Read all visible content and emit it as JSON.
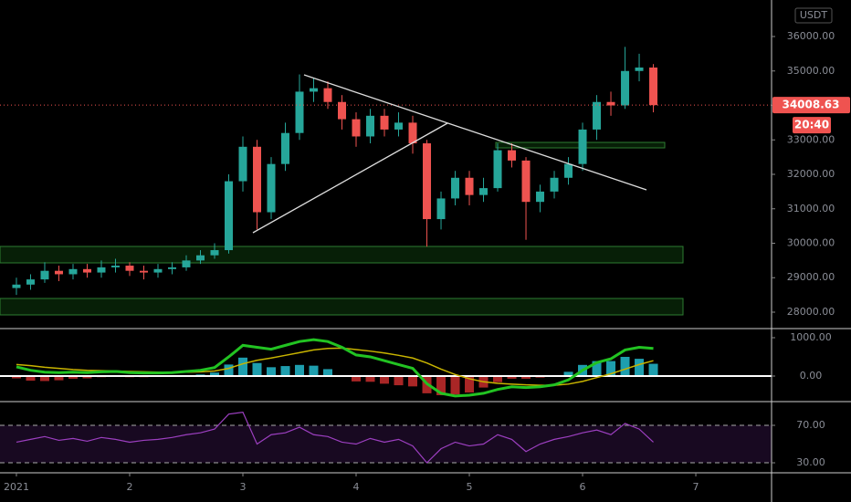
{
  "chart_data": [
    {
      "type": "candlestick",
      "currency": "USDT",
      "x": [
        1,
        1.125,
        1.25,
        1.375,
        1.5,
        1.625,
        1.75,
        1.875,
        2,
        2.125,
        2.25,
        2.375,
        2.5,
        2.625,
        2.75,
        2.875,
        3,
        3.125,
        3.25,
        3.375,
        3.5,
        3.625,
        3.75,
        3.875,
        4,
        4.125,
        4.25,
        4.375,
        4.5,
        4.625,
        4.75,
        4.875,
        5,
        5.125,
        5.25,
        5.375,
        5.5,
        5.625,
        5.75,
        5.875,
        6,
        6.125,
        6.25,
        6.375,
        6.5,
        6.625
      ],
      "open": [
        28700,
        28800,
        28950,
        29200,
        29100,
        29250,
        29150,
        29300,
        29350,
        29200,
        29150,
        29250,
        29300,
        29500,
        29650,
        29800,
        31800,
        32800,
        30900,
        32300,
        33200,
        34400,
        34500,
        34100,
        33600,
        33100,
        33700,
        33300,
        33500,
        32900,
        30700,
        31300,
        31900,
        31400,
        31600,
        32700,
        32400,
        31200,
        31500,
        31900,
        32300,
        33300,
        34100,
        34000,
        35000,
        35100
      ],
      "high": [
        29000,
        29100,
        29450,
        29350,
        29400,
        29400,
        29500,
        29550,
        29450,
        29350,
        29400,
        29450,
        29650,
        29800,
        30000,
        32000,
        33100,
        33000,
        32500,
        33500,
        34900,
        34800,
        34700,
        34300,
        33800,
        33900,
        33900,
        33800,
        33700,
        33000,
        31500,
        32100,
        32100,
        31900,
        32900,
        32900,
        32500,
        31700,
        32100,
        32500,
        33500,
        34300,
        34400,
        35700,
        35500,
        35200
      ],
      "low": [
        28500,
        28650,
        28850,
        28900,
        28950,
        29000,
        29000,
        29150,
        29050,
        28950,
        29000,
        29100,
        29200,
        29400,
        29550,
        29700,
        31500,
        30400,
        30700,
        32100,
        33000,
        34100,
        33900,
        33300,
        32800,
        32900,
        33100,
        33100,
        32600,
        29900,
        30400,
        31100,
        31100,
        31200,
        31500,
        32200,
        30100,
        30900,
        31300,
        31700,
        32100,
        33000,
        33700,
        33900,
        34700,
        33800
      ],
      "close": [
        28800,
        28950,
        29200,
        29100,
        29250,
        29150,
        29300,
        29350,
        29200,
        29150,
        29250,
        29300,
        29500,
        29650,
        29800,
        31800,
        32800,
        30900,
        32300,
        33200,
        34400,
        34500,
        34100,
        33600,
        33100,
        33700,
        33300,
        33500,
        32900,
        30700,
        31300,
        31900,
        31400,
        31600,
        32700,
        32400,
        31200,
        31500,
        31900,
        32300,
        33300,
        34100,
        34000,
        35000,
        35100,
        34008.63
      ],
      "up_color": "#26a69a",
      "down_color": "#ef5350",
      "last_price": 34008.63,
      "countdown": "20:40",
      "xlim": [
        0.855,
        7.669
      ],
      "xticks": [
        {
          "value": 1,
          "label": "2021"
        },
        2,
        3,
        4,
        5,
        6,
        7
      ],
      "ylim": [
        27576,
        37060
      ],
      "yticks": [
        {
          "value": 28000,
          "label": "28000.00"
        },
        {
          "value": 29000,
          "label": "29000.00"
        },
        {
          "value": 30000,
          "label": "30000.00"
        },
        {
          "value": 31000,
          "label": "31000.00"
        },
        {
          "value": 32000,
          "label": "32000.00"
        },
        {
          "value": 33000,
          "label": "33000.00"
        },
        {
          "value": 34000,
          "label": "34000.00"
        },
        {
          "value": 35000,
          "label": "35000.00"
        },
        {
          "value": 36000,
          "label": "36000.00"
        }
      ]
    },
    {
      "type": "macd",
      "macd": [
        240,
        150,
        100,
        90,
        100,
        90,
        110,
        120,
        90,
        80,
        80,
        90,
        120,
        150,
        220,
        500,
        800,
        750,
        700,
        800,
        900,
        950,
        900,
        750,
        550,
        500,
        400,
        300,
        200,
        -200,
        -450,
        -520,
        -500,
        -450,
        -350,
        -280,
        -300,
        -280,
        -230,
        -100,
        150,
        350,
        450,
        680,
        750,
        720
      ],
      "signal": [
        300,
        270,
        230,
        200,
        170,
        150,
        140,
        130,
        120,
        110,
        100,
        100,
        100,
        110,
        130,
        200,
        320,
        410,
        470,
        540,
        610,
        680,
        720,
        730,
        690,
        650,
        600,
        540,
        470,
        340,
        180,
        40,
        -70,
        -150,
        -190,
        -210,
        -230,
        -240,
        -240,
        -210,
        -140,
        -40,
        60,
        180,
        300,
        400
      ],
      "histogram": [
        -60,
        -120,
        -130,
        -110,
        -70,
        -60,
        -30,
        -10,
        -30,
        -30,
        -20,
        -10,
        20,
        40,
        90,
        300,
        480,
        340,
        230,
        260,
        290,
        270,
        180,
        20,
        -140,
        -150,
        -200,
        -240,
        -270,
        -450,
        -500,
        -480,
        -430,
        -300,
        -160,
        -70,
        -70,
        -40,
        10,
        110,
        290,
        390,
        390,
        500,
        450,
        320
      ],
      "macd_color": "#22c322",
      "signal_color": "#c8b400",
      "ylim": [
        -619,
        1190
      ],
      "yticks": [
        {
          "value": 0,
          "label": "0.00"
        },
        {
          "value": 1000,
          "label": "1000.00"
        }
      ]
    },
    {
      "type": "line",
      "color": "#9c3fc0",
      "values": [
        52,
        55,
        58,
        54,
        56,
        53,
        57,
        55,
        52,
        54,
        55,
        57,
        60,
        62,
        66,
        82,
        84,
        50,
        60,
        62,
        68,
        60,
        58,
        52,
        50,
        56,
        52,
        55,
        48,
        30,
        45,
        52,
        48,
        50,
        60,
        55,
        42,
        50,
        55,
        58,
        62,
        65,
        60,
        72,
        66,
        52
      ],
      "ylim": [
        19.3,
        93.4
      ],
      "yticks": [
        {
          "value": 30,
          "label": "30.00"
        },
        {
          "value": 70,
          "label": "70.00"
        }
      ]
    }
  ]
}
